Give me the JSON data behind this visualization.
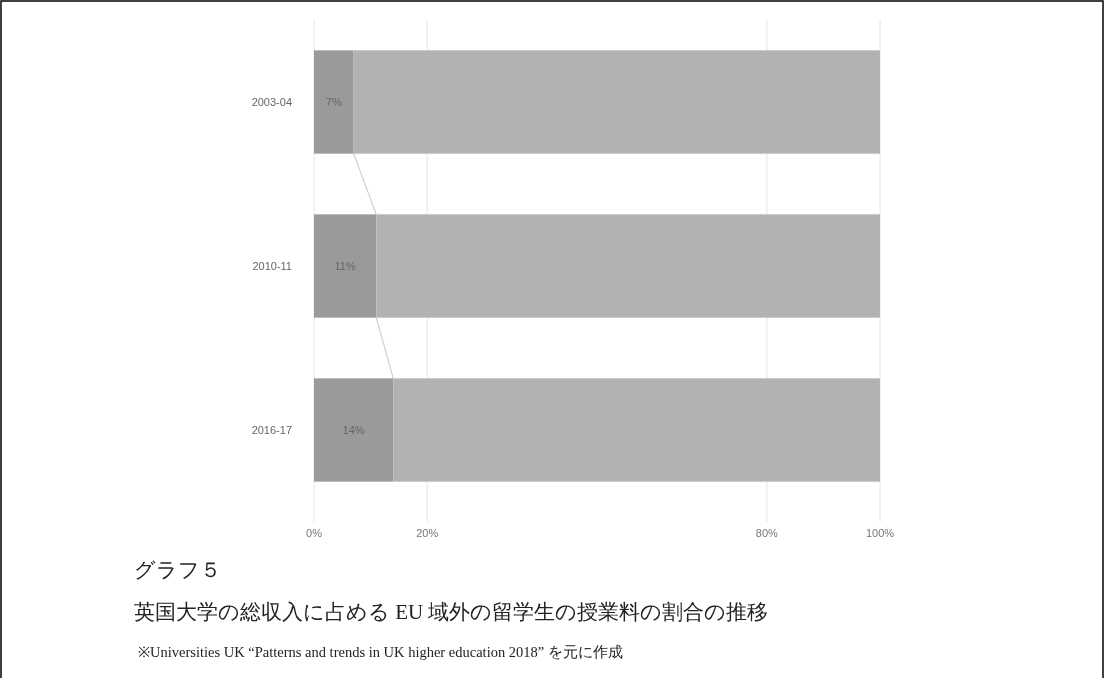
{
  "chart_data": {
    "type": "bar",
    "orientation": "horizontal",
    "stacked": true,
    "title": "グラフ５",
    "subtitle": "英国大学の総収入に占める EU 域外の留学生の授業料の割合の推移",
    "annotations": [
      "※Universities UK “Patterns and trends in UK higher education 2018” を元に作成"
    ],
    "categories": [
      "2003-04",
      "2010-11",
      "2016-17"
    ],
    "series": [
      {
        "color": "#9a9a9c",
        "values": [
          7,
          11,
          14
        ],
        "value_labels": [
          "7%",
          "11%",
          "14%"
        ]
      },
      {
        "color": "#b2b2b4",
        "values": [
          93,
          89,
          86
        ]
      }
    ],
    "xlim": [
      0,
      100
    ],
    "xticks": [
      {
        "value": 0,
        "label": "0%"
      },
      {
        "value": 20,
        "label": "20%"
      },
      {
        "value": 80,
        "label": "80%"
      },
      {
        "value": 100,
        "label": "100%"
      }
    ],
    "grid": "x"
  }
}
